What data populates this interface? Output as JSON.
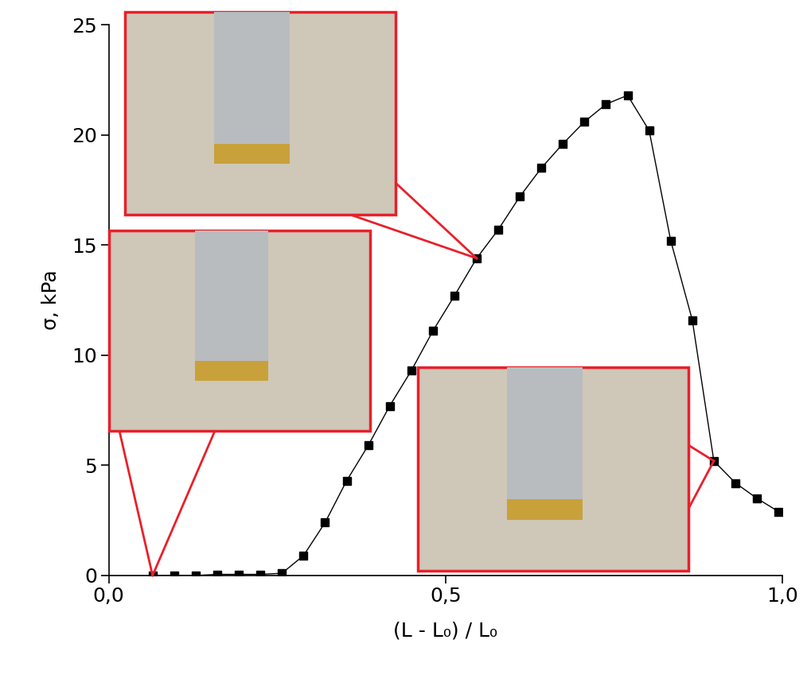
{
  "chart_data": {
    "type": "line",
    "x_label": "(L - L₀) / L₀",
    "y_label": "σ, kPa",
    "x": [
      0.065,
      0.097,
      0.129,
      0.161,
      0.193,
      0.225,
      0.257,
      0.289,
      0.321,
      0.353,
      0.385,
      0.417,
      0.449,
      0.481,
      0.513,
      0.546,
      0.578,
      0.61,
      0.642,
      0.674,
      0.706,
      0.738,
      0.77,
      0.802,
      0.834,
      0.866,
      0.898,
      0.93,
      0.962,
      0.994
    ],
    "values": [
      0,
      0,
      0,
      0.05,
      0.05,
      0.05,
      0.1,
      0.9,
      2.4,
      4.3,
      5.9,
      7.7,
      9.3,
      11.1,
      12.7,
      14.4,
      15.7,
      17.2,
      18.5,
      19.6,
      20.6,
      21.4,
      21.8,
      20.2,
      15.2,
      11.6,
      5.2,
      4.2,
      3.5,
      2.9
    ],
    "color": "#000000",
    "marker": "square",
    "line_style": "solid",
    "xlim": [
      0,
      1.0
    ],
    "xticks": [
      {
        "value": 0,
        "label": "0,0"
      },
      {
        "value": 0.5,
        "label": "0,5"
      },
      {
        "value": 1.0,
        "label": "1,0"
      }
    ],
    "ylim": [
      0,
      25
    ],
    "yticks": [
      0,
      5,
      10,
      15,
      20,
      25
    ],
    "grid": false
  }
}
